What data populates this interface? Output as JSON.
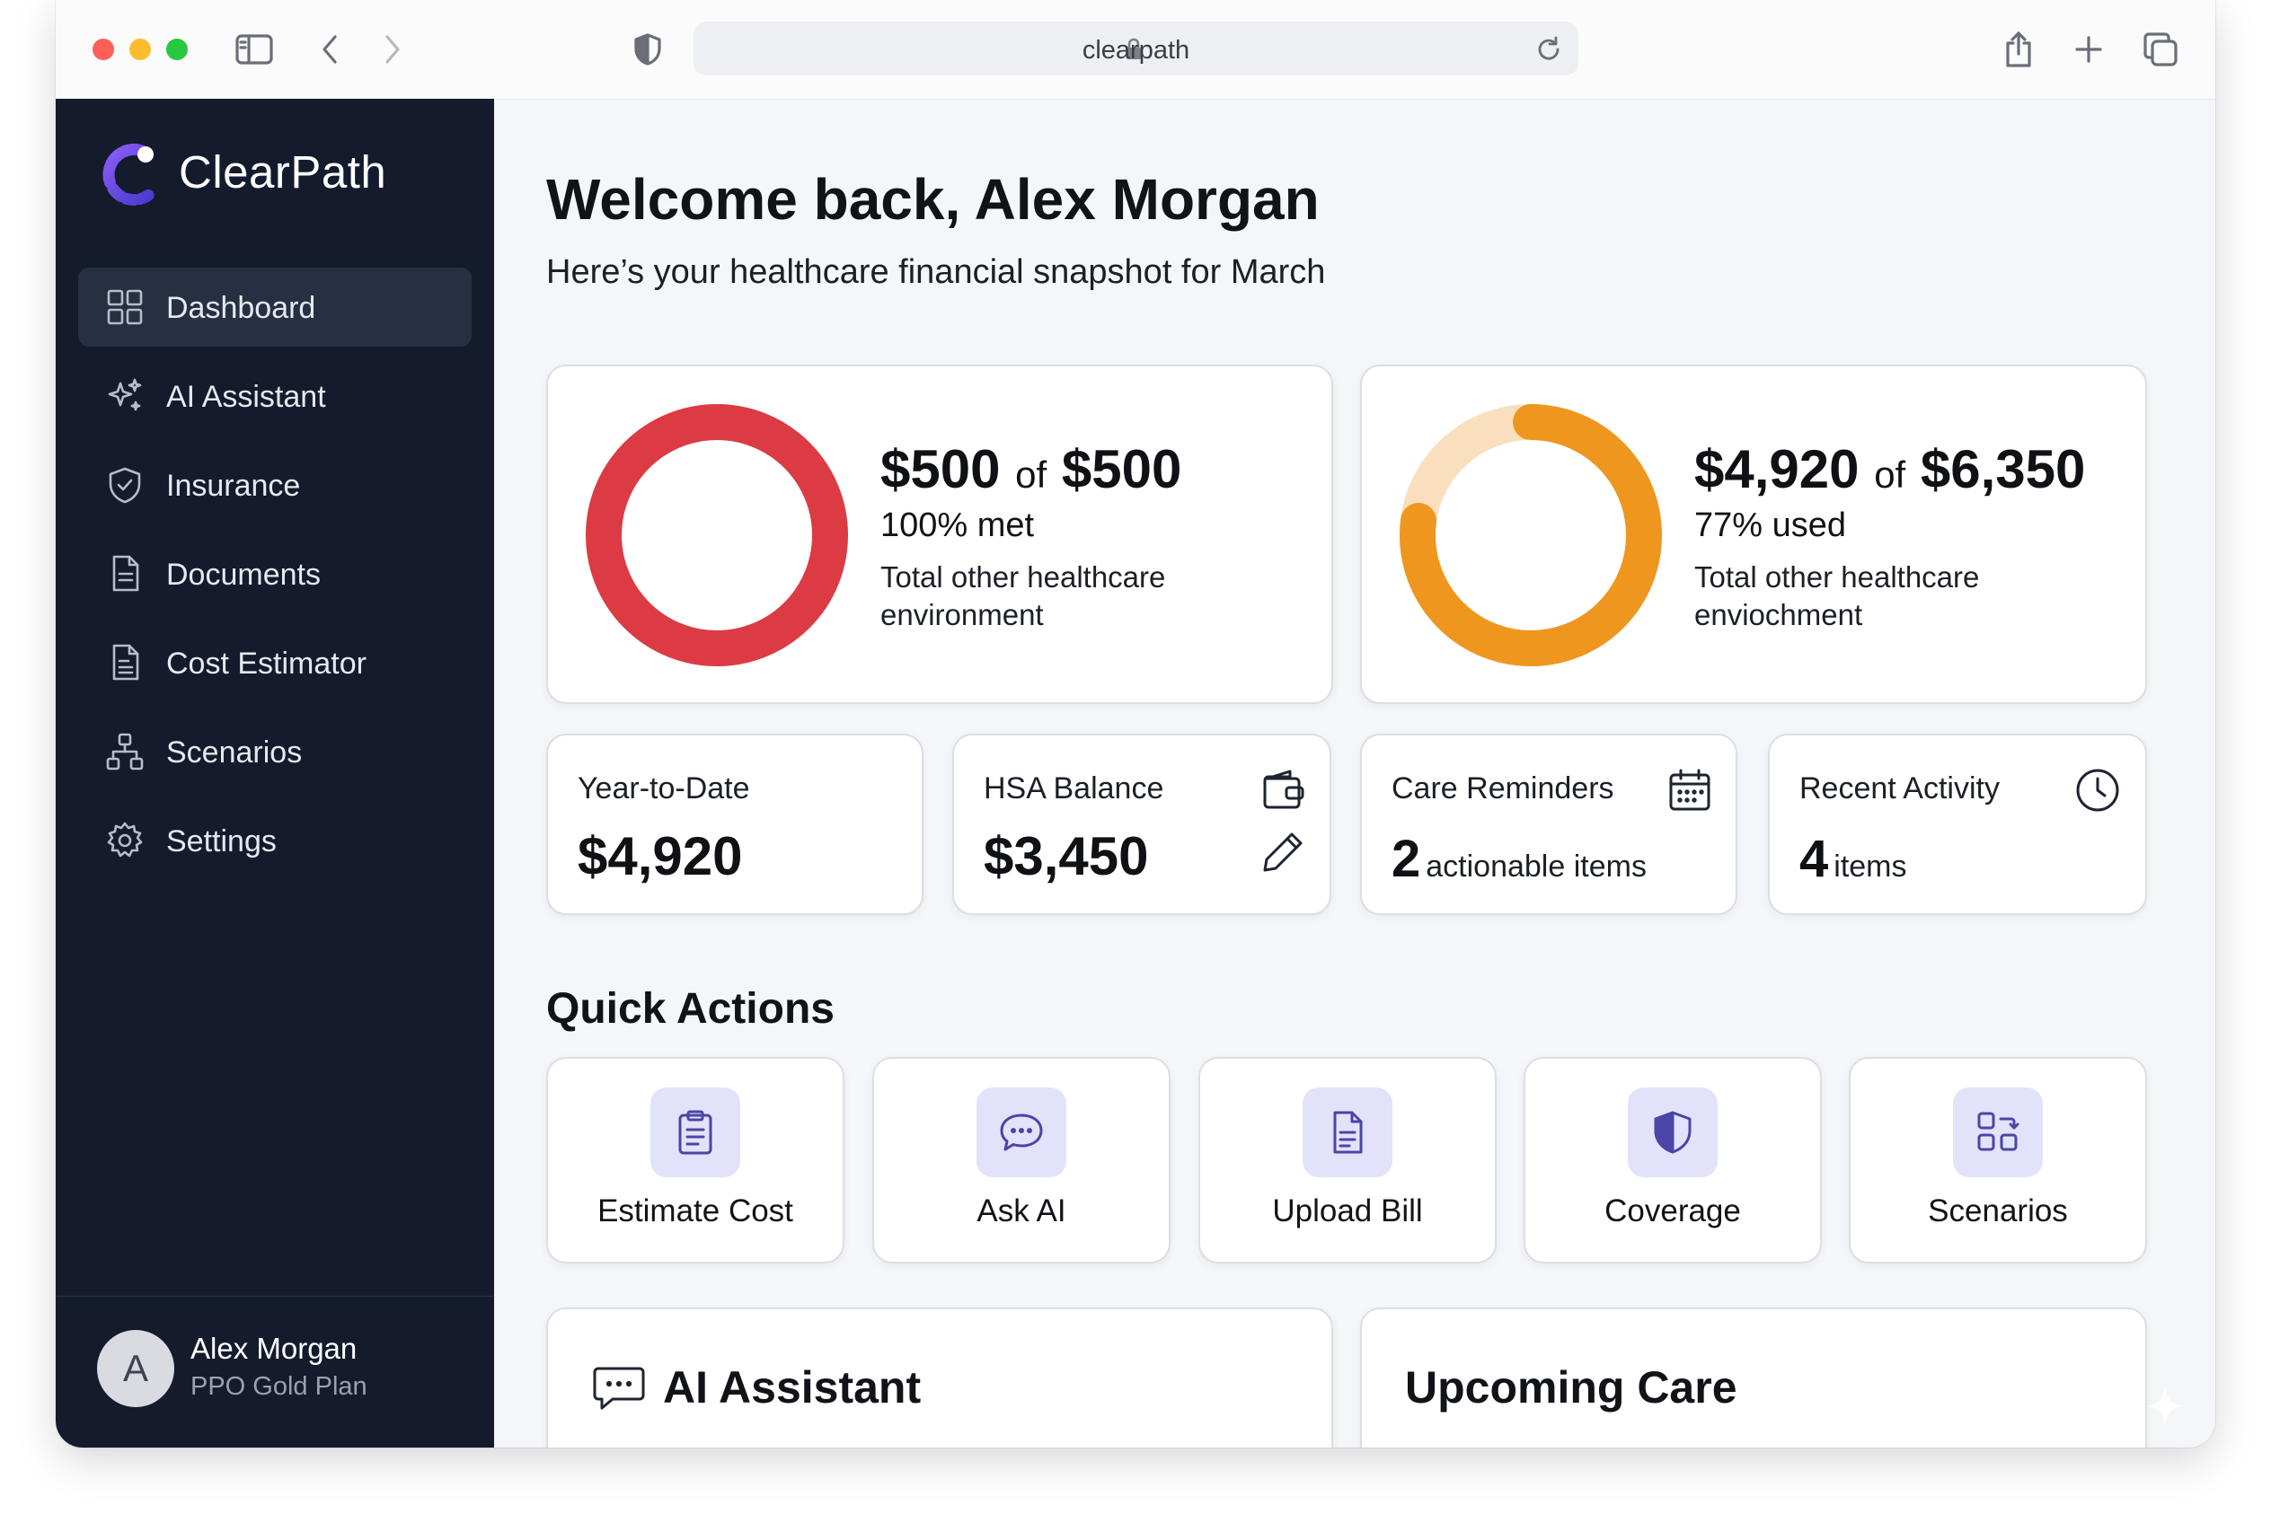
{
  "browser": {
    "url": "clearpath"
  },
  "sidebar": {
    "brand": "ClearPath",
    "items": [
      {
        "label": "Dashboard",
        "icon": "grid-icon",
        "active": true
      },
      {
        "label": "AI Assistant",
        "icon": "sparkle-icon"
      },
      {
        "label": "Insurance",
        "icon": "shield-check-icon"
      },
      {
        "label": "Documents",
        "icon": "document-icon"
      },
      {
        "label": "Cost Estimator",
        "icon": "document-lines-icon"
      },
      {
        "label": "Scenarios",
        "icon": "hierarchy-icon"
      },
      {
        "label": "Settings",
        "icon": "gear-icon"
      }
    ],
    "user": {
      "initial": "A",
      "name": "Alex Morgan",
      "plan": "PPO Gold Plan"
    }
  },
  "header": {
    "title": "Welcome back, Alex Morgan",
    "subtitle": "Here’s your healthcare financial snapshot for March"
  },
  "summary_cards": [
    {
      "amount": "$500",
      "of": "of",
      "total": "$500",
      "status": "100% met",
      "description": "Total other healthcare environment",
      "progress_fraction": 1.0,
      "color": "#dc3b43",
      "track_color": "#f6d4d6"
    },
    {
      "amount": "$4,920",
      "of": "of",
      "total": "$6,350",
      "status": "77% used",
      "description": "Total other healthcare enviochment",
      "progress_fraction": 0.77,
      "color": "#ef961f",
      "track_color": "#f9dfbd"
    }
  ],
  "stats": {
    "ytd": {
      "label": "Year-to-Date",
      "value": "$4,920"
    },
    "hsa": {
      "label": "HSA Balance",
      "value": "$3,450",
      "icon": "wallet-icon",
      "action_icon": "pencil-icon"
    },
    "reminders": {
      "label": "Care Reminders",
      "count": "2",
      "unit": "actionable items",
      "icon": "calendar-icon"
    },
    "activity": {
      "label": "Recent Activity",
      "count": "4",
      "unit": "items",
      "icon": "clock-icon"
    }
  },
  "quick_actions": {
    "title": "Quick Actions",
    "items": [
      {
        "label": "Estimate Cost",
        "icon": "clipboard-icon"
      },
      {
        "label": "Ask AI",
        "icon": "chat-bubble-icon"
      },
      {
        "label": "Upload Bill",
        "icon": "document-icon"
      },
      {
        "label": "Coverage",
        "icon": "shield-icon"
      },
      {
        "label": "Scenarios",
        "icon": "blocks-icon"
      }
    ]
  },
  "panels": {
    "ai_assistant": {
      "title": "AI Assistant",
      "icon": "chat-icon"
    },
    "upcoming_care": {
      "title": "Upcoming Care"
    }
  },
  "colors": {
    "sidebar_bg": "#141b2d",
    "accent": "#6c4cf0",
    "qa_tile": "#e3e2fb"
  }
}
